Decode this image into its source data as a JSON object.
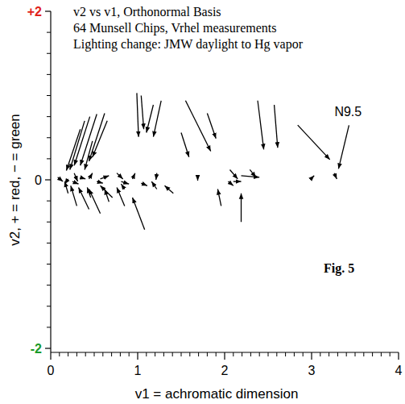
{
  "chart_data": {
    "type": "arrow",
    "title": "v2 vs v1, Orthonormal Basis",
    "subtitle": [
      "64 Munsell Chips, Vrhel measurements",
      "Lighting change: JMW daylight to Hg vapor"
    ],
    "x_label": "v1 = achromatic dimension",
    "y_label": "v2, + = red, − = green",
    "figure_label": "Fig. 5",
    "color": "#000000",
    "xlim": [
      0,
      4
    ],
    "ylim": [
      -2,
      2
    ],
    "xticks": [
      0,
      1,
      2,
      3,
      4
    ],
    "yticks": [
      -2,
      0,
      {
        "value": 2,
        "label": "+2"
      }
    ],
    "xminor_ticks": [
      0.1,
      0.2,
      0.3,
      0.4,
      0.5,
      0.6,
      0.7,
      0.8,
      0.9,
      1.1,
      1.2,
      1.3,
      1.4,
      1.5,
      1.6,
      1.7,
      1.8,
      1.9,
      2.1,
      2.2,
      2.3,
      2.4,
      2.5,
      2.6,
      2.7,
      2.8,
      2.9,
      3.1,
      3.2,
      3.3,
      3.4,
      3.5,
      3.6,
      3.7,
      3.8,
      3.9
    ],
    "yminor_ticks": [
      -1.75,
      -1.5,
      -1.25,
      -1,
      -0.75,
      -0.5,
      -0.25,
      0.25,
      0.5,
      0.75,
      1,
      1.25,
      1.5,
      1.75
    ],
    "annotations": [
      {
        "text": "N9.5",
        "x": 3.3,
        "y": 0.12
      }
    ],
    "arrows": [
      {
        "x": 0.34,
        "y": 0.6,
        "x2": 0.18,
        "y2": 0.11
      },
      {
        "x": 0.39,
        "y": 0.7,
        "x2": 0.22,
        "y2": 0.12
      },
      {
        "x": 0.45,
        "y": 0.75,
        "x2": 0.27,
        "y2": 0.17
      },
      {
        "x": 0.53,
        "y": 0.78,
        "x2": 0.34,
        "y2": 0.17
      },
      {
        "x": 0.62,
        "y": 0.79,
        "x2": 0.44,
        "y2": 0.22
      },
      {
        "x": 0.65,
        "y": 0.7,
        "x2": 0.48,
        "y2": 0.27
      },
      {
        "x": 0.48,
        "y": 0.46,
        "x2": 0.39,
        "y2": 0.12
      },
      {
        "x": 0.99,
        "y": 1.03,
        "x2": 1.01,
        "y2": 0.51
      },
      {
        "x": 1.04,
        "y": 1.0,
        "x2": 1.07,
        "y2": 0.6
      },
      {
        "x": 1.18,
        "y": 0.89,
        "x2": 1.1,
        "y2": 0.56
      },
      {
        "x": 1.27,
        "y": 0.94,
        "x2": 1.18,
        "y2": 0.51
      },
      {
        "x": 1.55,
        "y": 0.94,
        "x2": 1.84,
        "y2": 0.34
      },
      {
        "x": 1.8,
        "y": 0.79,
        "x2": 1.9,
        "y2": 0.49
      },
      {
        "x": 2.38,
        "y": 0.94,
        "x2": 2.45,
        "y2": 0.36
      },
      {
        "x": 2.57,
        "y": 0.89,
        "x2": 2.61,
        "y2": 0.38
      },
      {
        "x": 2.84,
        "y": 0.65,
        "x2": 3.21,
        "y2": 0.24
      },
      {
        "x": 1.5,
        "y": 0.56,
        "x2": 1.59,
        "y2": 0.27
      },
      {
        "x": 0.08,
        "y": 0.03,
        "x2": 0.14,
        "y2": -0.02
      },
      {
        "x": 0.2,
        "y": 0.01,
        "x2": 0.16,
        "y2": -0.05
      },
      {
        "x": 0.27,
        "y": 0.08,
        "x2": 0.31,
        "y2": -0.02
      },
      {
        "x": 0.34,
        "y": 0.03,
        "x2": 0.4,
        "y2": 0.01
      },
      {
        "x": 0.44,
        "y": 0.01,
        "x2": 0.48,
        "y2": 0.08
      },
      {
        "x": 0.57,
        "y": 0.01,
        "x2": 0.67,
        "y2": 0.05
      },
      {
        "x": 0.76,
        "y": 0.08,
        "x2": 0.83,
        "y2": 0.01
      },
      {
        "x": 0.81,
        "y": -0.02,
        "x2": 0.9,
        "y2": -0.05
      },
      {
        "x": 0.94,
        "y": 0.01,
        "x2": 0.97,
        "y2": 0.08
      },
      {
        "x": 1.22,
        "y": 0.08,
        "x2": 1.21,
        "y2": 0.0
      },
      {
        "x": 1.69,
        "y": 0.03,
        "x2": 1.69,
        "y2": -0.01
      },
      {
        "x": 2.06,
        "y": 0.12,
        "x2": 2.15,
        "y2": 0.01
      },
      {
        "x": 2.1,
        "y": -0.02,
        "x2": 2.19,
        "y2": -0.02
      },
      {
        "x": 2.19,
        "y": 0.05,
        "x2": 2.4,
        "y2": 0.03
      },
      {
        "x": 2.29,
        "y": 0.12,
        "x2": 2.36,
        "y2": 0.03
      },
      {
        "x": 3.01,
        "y": 0.03,
        "x2": 3.03,
        "y2": 0.05
      },
      {
        "x": 3.26,
        "y": 0.08,
        "x2": 3.29,
        "y2": 0.01
      },
      {
        "x": 0.2,
        "y": -0.16,
        "x2": 0.16,
        "y2": -0.02
      },
      {
        "x": 0.3,
        "y": -0.31,
        "x2": 0.23,
        "y2": -0.07
      },
      {
        "x": 0.44,
        "y": -0.35,
        "x2": 0.32,
        "y2": -0.09
      },
      {
        "x": 0.57,
        "y": -0.4,
        "x2": 0.44,
        "y2": -0.11
      },
      {
        "x": 0.71,
        "y": -0.21,
        "x2": 0.57,
        "y2": -0.07
      },
      {
        "x": 0.85,
        "y": -0.31,
        "x2": 0.76,
        "y2": -0.09
      },
      {
        "x": 1.08,
        "y": -0.59,
        "x2": 0.94,
        "y2": -0.21
      },
      {
        "x": 1.22,
        "y": -0.11,
        "x2": 1.16,
        "y2": -0.02
      },
      {
        "x": 1.41,
        "y": -0.16,
        "x2": 1.31,
        "y2": -0.07
      },
      {
        "x": 1.96,
        "y": -0.31,
        "x2": 1.92,
        "y2": -0.11
      },
      {
        "x": 2.19,
        "y": -0.5,
        "x2": 2.19,
        "y2": -0.16
      },
      {
        "x": 0.85,
        "y": -0.11,
        "x2": 0.81,
        "y2": -0.05
      },
      {
        "x": 0.67,
        "y": -0.26,
        "x2": 0.62,
        "y2": -0.11
      },
      {
        "x": 0.46,
        "y": -0.21,
        "x2": 0.42,
        "y2": -0.09
      },
      {
        "x": 0.25,
        "y": -0.02,
        "x2": 0.32,
        "y2": -0.05
      },
      {
        "x": 0.53,
        "y": -0.02,
        "x2": 0.6,
        "y2": -0.04
      },
      {
        "x": 1.04,
        "y": -0.04,
        "x2": 1.11,
        "y2": -0.07
      },
      {
        "x": 2.04,
        "y": -0.02,
        "x2": 2.1,
        "y2": -0.07
      }
    ]
  }
}
